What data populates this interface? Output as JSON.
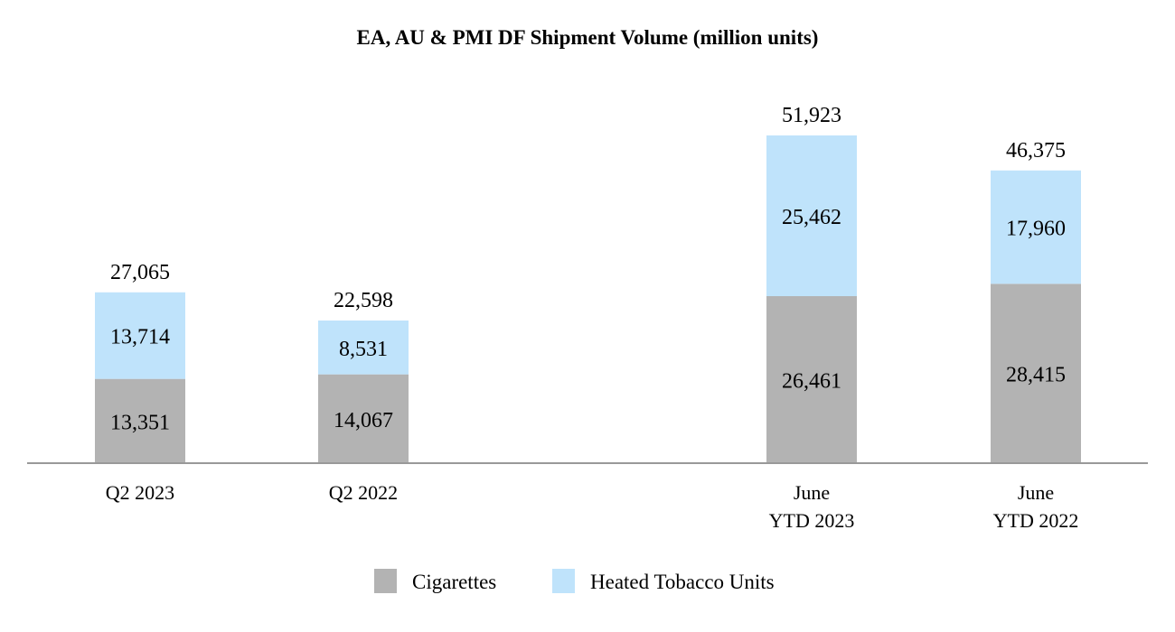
{
  "chart_data": {
    "type": "bar",
    "stacked": true,
    "title": "EA, AU & PMI DF Shipment Volume (million units)",
    "categories": [
      [
        "Q2 2023"
      ],
      [
        "Q2 2022"
      ],
      [
        "June",
        "YTD 2023"
      ],
      [
        "June",
        "YTD 2022"
      ]
    ],
    "series": [
      {
        "name": "Cigarettes",
        "color": "#b3b3b3",
        "values": [
          13351,
          14067,
          26461,
          28415
        ],
        "value_labels": [
          "13,351",
          "14,067",
          "26,461",
          "28,415"
        ]
      },
      {
        "name": "Heated Tobacco Units",
        "color": "#bfe3fb",
        "values": [
          13714,
          8531,
          25462,
          17960
        ],
        "value_labels": [
          "13,714",
          "8,531",
          "25,462",
          "17,960"
        ]
      }
    ],
    "totals": [
      27065,
      22598,
      51923,
      46375
    ],
    "total_labels": [
      "27,065",
      "22,598",
      "51,923",
      "46,375"
    ],
    "ylim": [
      0,
      51923
    ],
    "grid": false,
    "legend_position": "bottom-center",
    "axis_color": "#999999"
  }
}
